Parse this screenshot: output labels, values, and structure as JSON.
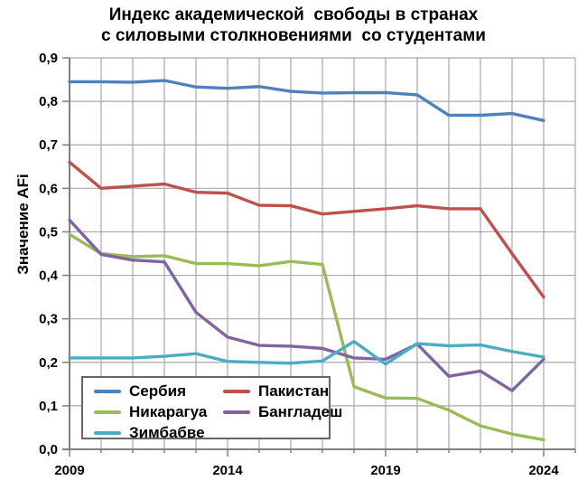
{
  "title": {
    "line1": "Индекс академической  свободы в странах",
    "line2": "с силовыми столкновениями  со студентами"
  },
  "y_axis": {
    "label": "Значение AFi",
    "tick_labels": [
      "0,0",
      "0,1",
      "0,2",
      "0,3",
      "0,4",
      "0,5",
      "0,6",
      "0,7",
      "0,8",
      "0,9"
    ]
  },
  "x_axis": {
    "major_tick_labels": [
      "2009",
      "2014",
      "2019",
      "2024"
    ],
    "major_tick_years": [
      2009,
      2014,
      2019,
      2024
    ]
  },
  "colors": {
    "gridline": "#a8a8a8",
    "axis": "#808080",
    "background": "#ffffff",
    "text": "#000000"
  },
  "chart_data": {
    "type": "line",
    "title": "Индекс академической свободы в странах с силовыми столкновениями со студентами",
    "xlabel": "",
    "ylabel": "Значение AFi",
    "x": [
      2009,
      2010,
      2011,
      2012,
      2013,
      2014,
      2015,
      2016,
      2017,
      2018,
      2019,
      2020,
      2021,
      2022,
      2023,
      2024
    ],
    "xlim": [
      2009,
      2025
    ],
    "ylim": [
      0,
      0.9
    ],
    "ytick_step": 0.1,
    "decimal_separator": ",",
    "grid": true,
    "legend_position": "inside-bottom-left",
    "series": [
      {
        "key": "serbia",
        "name": "Сербия",
        "color": "#4F81BD",
        "values": [
          0.845,
          0.845,
          0.844,
          0.848,
          0.833,
          0.83,
          0.834,
          0.823,
          0.819,
          0.82,
          0.82,
          0.815,
          0.768,
          0.768,
          0.772,
          0.756
        ]
      },
      {
        "key": "pakistan",
        "name": "Пакистан",
        "color": "#C0504D",
        "values": [
          0.66,
          0.6,
          0.605,
          0.61,
          0.591,
          0.589,
          0.561,
          0.56,
          0.541,
          0.547,
          0.553,
          0.56,
          0.553,
          0.553,
          0.45,
          0.35
        ]
      },
      {
        "key": "nicaragua",
        "name": "Никарагуа",
        "color": "#9BBB59",
        "values": [
          0.494,
          0.45,
          0.443,
          0.445,
          0.427,
          0.427,
          0.422,
          0.432,
          0.425,
          0.144,
          0.118,
          0.117,
          0.09,
          0.054,
          0.035,
          0.022
        ]
      },
      {
        "key": "bangladesh",
        "name": "Бангладеш",
        "color": "#8064A2",
        "values": [
          0.527,
          0.448,
          0.435,
          0.431,
          0.315,
          0.258,
          0.239,
          0.237,
          0.232,
          0.21,
          0.207,
          0.242,
          0.168,
          0.18,
          0.135,
          0.207
        ]
      },
      {
        "key": "zimbabwe",
        "name": "Зимбабве",
        "color": "#4BACC6",
        "values": [
          0.21,
          0.21,
          0.21,
          0.214,
          0.22,
          0.202,
          0.2,
          0.198,
          0.203,
          0.248,
          0.196,
          0.243,
          0.238,
          0.24,
          0.225,
          0.212
        ]
      }
    ]
  }
}
